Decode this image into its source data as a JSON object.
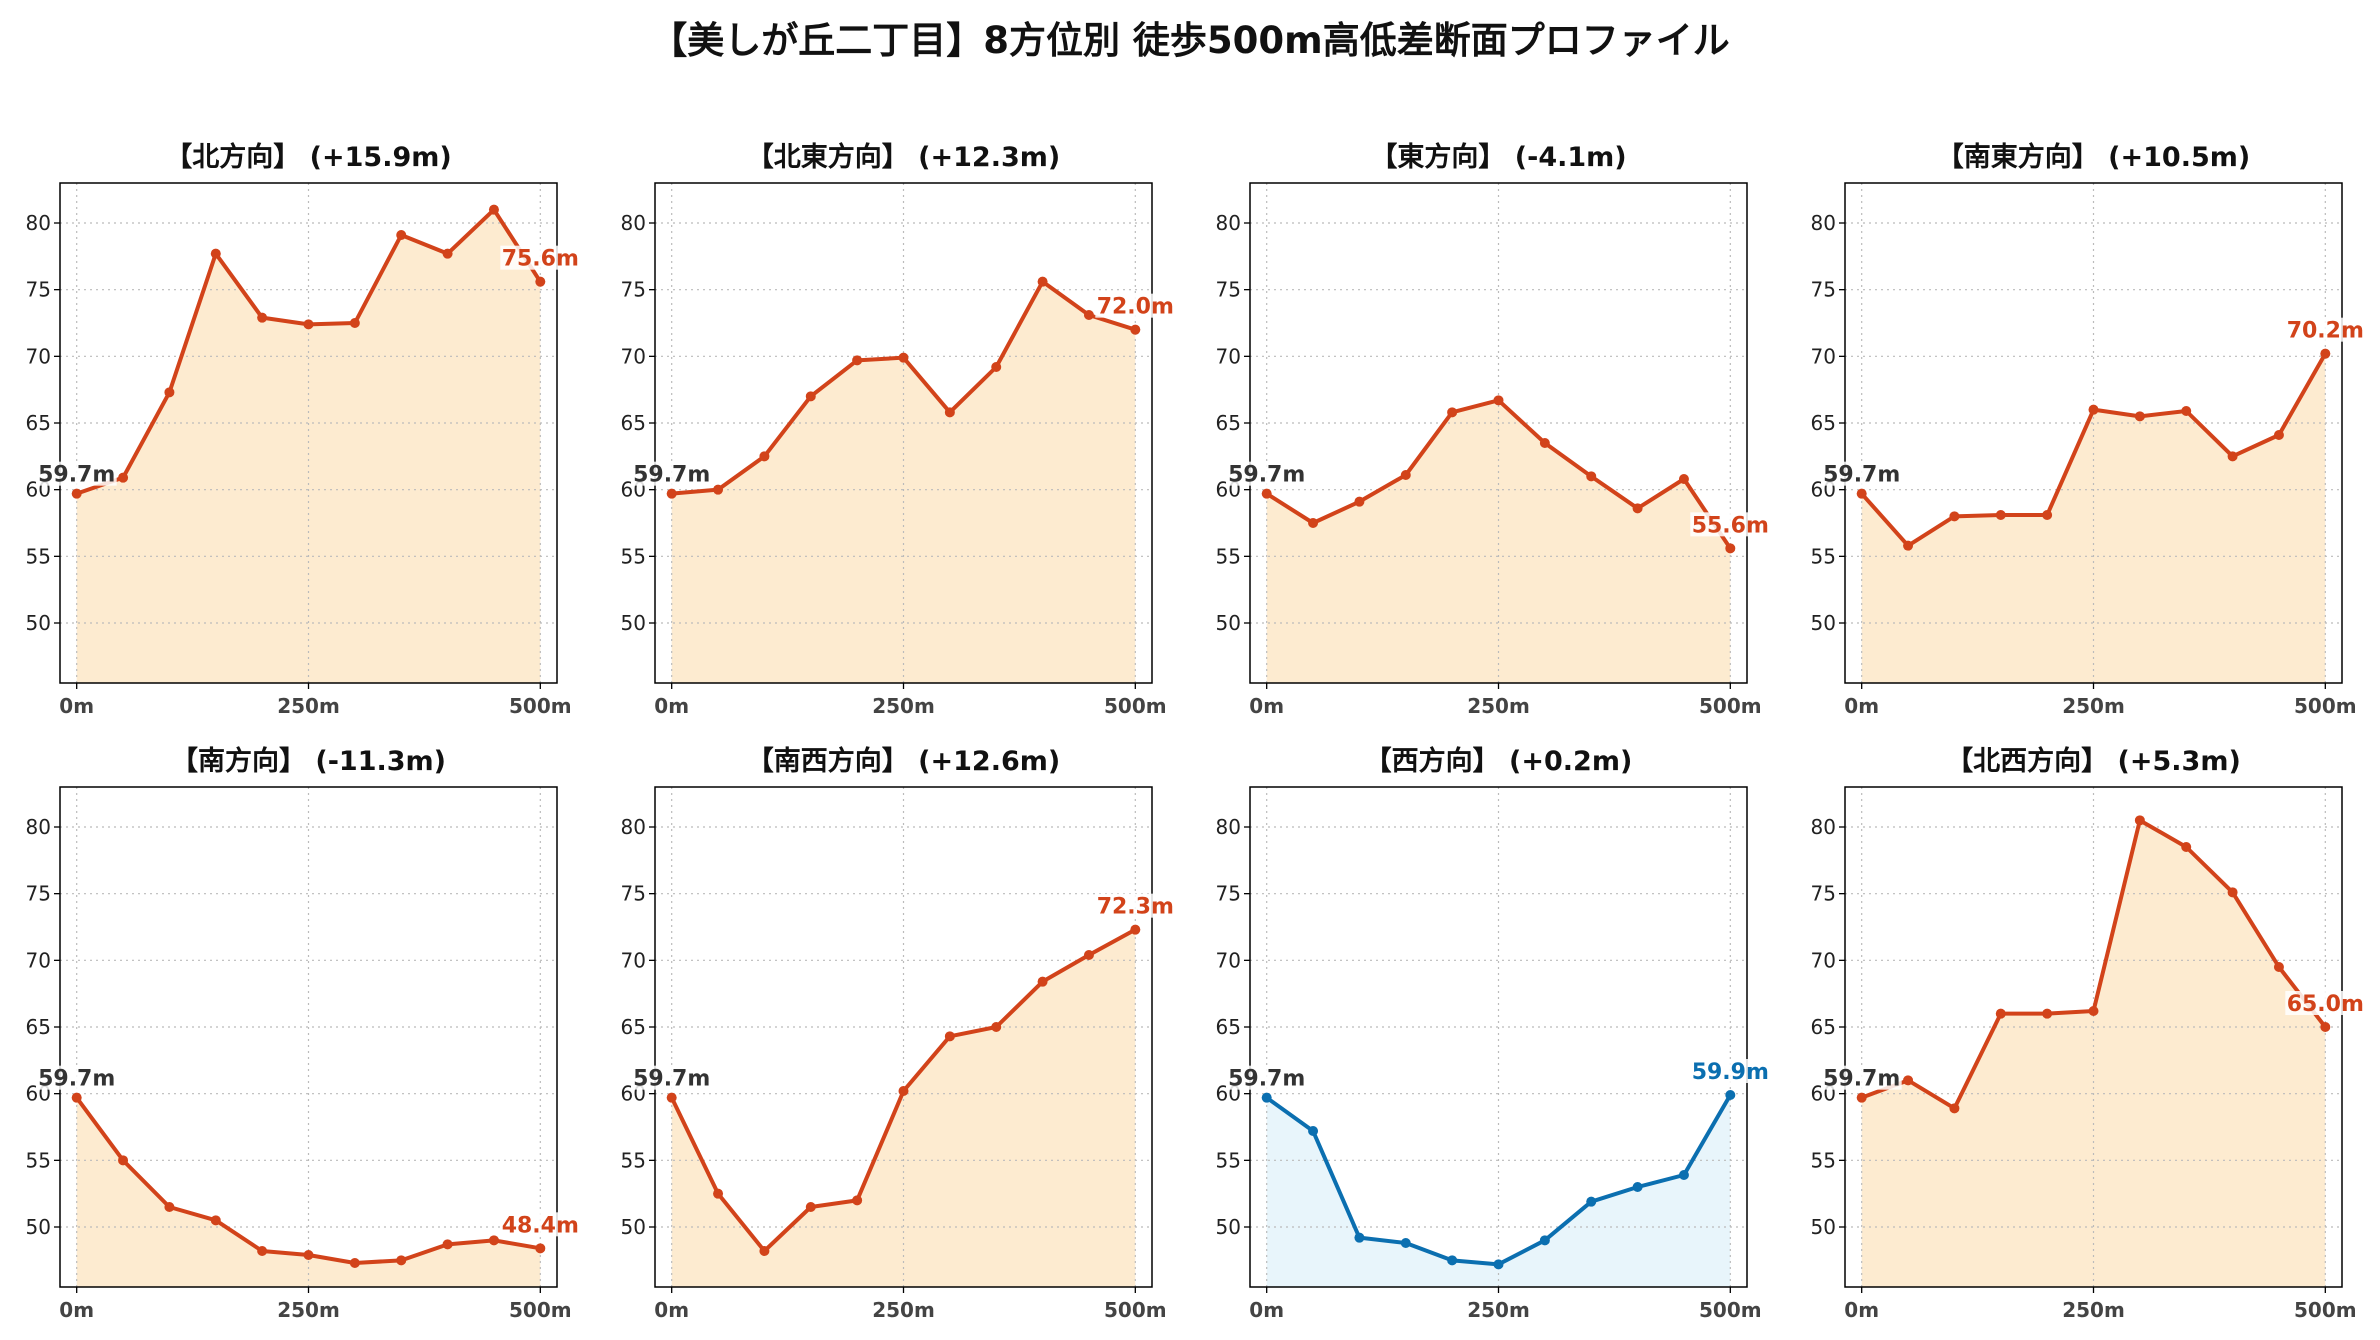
{
  "title": "【美しが丘二丁目】8方位別 徒歩500m高低差断面プロファイル",
  "colors": {
    "up_line": "#d2431a",
    "up_fill": "#fdebd0",
    "down_line": "#0b6fb0",
    "down_fill": "#e8f5fb",
    "start_label": "#333333",
    "grid": "#bbbbbb"
  },
  "chart_data": [
    {
      "type": "line",
      "title": "【北方向】 (+15.9m)",
      "x": [
        0,
        50,
        100,
        150,
        200,
        250,
        300,
        350,
        400,
        450,
        500
      ],
      "values": [
        59.7,
        60.9,
        67.3,
        77.7,
        72.9,
        72.4,
        72.5,
        79.1,
        77.7,
        81.0,
        75.6
      ],
      "start_label": "59.7m",
      "end_label": "75.6m",
      "scheme": "up",
      "xticks": [
        "0m",
        "250m",
        "500m"
      ],
      "yticks": [
        50,
        55,
        60,
        65,
        70,
        75,
        80
      ],
      "ylim": [
        45.5,
        83
      ],
      "xlim": [
        -18,
        518
      ],
      "grid": true
    },
    {
      "type": "line",
      "title": "【北東方向】 (+12.3m)",
      "x": [
        0,
        50,
        100,
        150,
        200,
        250,
        300,
        350,
        400,
        450,
        500
      ],
      "values": [
        59.7,
        60.0,
        62.5,
        67.0,
        69.7,
        69.9,
        65.8,
        69.2,
        75.6,
        73.1,
        72.0
      ],
      "start_label": "59.7m",
      "end_label": "72.0m",
      "scheme": "up",
      "xticks": [
        "0m",
        "250m",
        "500m"
      ],
      "yticks": [
        50,
        55,
        60,
        65,
        70,
        75,
        80
      ],
      "ylim": [
        45.5,
        83
      ],
      "xlim": [
        -18,
        518
      ],
      "grid": true
    },
    {
      "type": "line",
      "title": "【東方向】 (-4.1m)",
      "x": [
        0,
        50,
        100,
        150,
        200,
        250,
        300,
        350,
        400,
        450,
        500
      ],
      "values": [
        59.7,
        57.5,
        59.1,
        61.1,
        65.8,
        66.7,
        63.5,
        61.0,
        58.6,
        60.8,
        55.6
      ],
      "start_label": "59.7m",
      "end_label": "55.6m",
      "scheme": "up",
      "xticks": [
        "0m",
        "250m",
        "500m"
      ],
      "yticks": [
        50,
        55,
        60,
        65,
        70,
        75,
        80
      ],
      "ylim": [
        45.5,
        83
      ],
      "xlim": [
        -18,
        518
      ],
      "grid": true
    },
    {
      "type": "line",
      "title": "【南東方向】 (+10.5m)",
      "x": [
        0,
        50,
        100,
        150,
        200,
        250,
        300,
        350,
        400,
        450,
        500
      ],
      "values": [
        59.7,
        55.8,
        58.0,
        58.1,
        58.1,
        66.0,
        65.5,
        65.9,
        62.5,
        64.1,
        70.2
      ],
      "start_label": "59.7m",
      "end_label": "70.2m",
      "scheme": "up",
      "xticks": [
        "0m",
        "250m",
        "500m"
      ],
      "yticks": [
        50,
        55,
        60,
        65,
        70,
        75,
        80
      ],
      "ylim": [
        45.5,
        83
      ],
      "xlim": [
        -18,
        518
      ],
      "grid": true
    },
    {
      "type": "line",
      "title": "【南方向】 (-11.3m)",
      "x": [
        0,
        50,
        100,
        150,
        200,
        250,
        300,
        350,
        400,
        450,
        500
      ],
      "values": [
        59.7,
        55.0,
        51.5,
        50.5,
        48.2,
        47.9,
        47.3,
        47.5,
        48.7,
        49.0,
        48.4
      ],
      "start_label": "59.7m",
      "end_label": "48.4m",
      "scheme": "up",
      "xticks": [
        "0m",
        "250m",
        "500m"
      ],
      "yticks": [
        50,
        55,
        60,
        65,
        70,
        75,
        80
      ],
      "ylim": [
        45.5,
        83
      ],
      "xlim": [
        -18,
        518
      ],
      "grid": true
    },
    {
      "type": "line",
      "title": "【南西方向】 (+12.6m)",
      "x": [
        0,
        50,
        100,
        150,
        200,
        250,
        300,
        350,
        400,
        450,
        500
      ],
      "values": [
        59.7,
        52.5,
        48.2,
        51.5,
        52.0,
        60.2,
        64.3,
        65.0,
        68.4,
        70.4,
        72.3
      ],
      "start_label": "59.7m",
      "end_label": "72.3m",
      "scheme": "up",
      "xticks": [
        "0m",
        "250m",
        "500m"
      ],
      "yticks": [
        50,
        55,
        60,
        65,
        70,
        75,
        80
      ],
      "ylim": [
        45.5,
        83
      ],
      "xlim": [
        -18,
        518
      ],
      "grid": true
    },
    {
      "type": "line",
      "title": "【西方向】 (+0.2m)",
      "x": [
        0,
        50,
        100,
        150,
        200,
        250,
        300,
        350,
        400,
        450,
        500
      ],
      "values": [
        59.7,
        57.2,
        49.2,
        48.8,
        47.5,
        47.2,
        49.0,
        51.9,
        53.0,
        53.9,
        59.9
      ],
      "start_label": "59.7m",
      "end_label": "59.9m",
      "scheme": "down",
      "xticks": [
        "0m",
        "250m",
        "500m"
      ],
      "yticks": [
        50,
        55,
        60,
        65,
        70,
        75,
        80
      ],
      "ylim": [
        45.5,
        83
      ],
      "xlim": [
        -18,
        518
      ],
      "grid": true
    },
    {
      "type": "line",
      "title": "【北西方向】 (+5.3m)",
      "x": [
        0,
        50,
        100,
        150,
        200,
        250,
        300,
        350,
        400,
        450,
        500
      ],
      "values": [
        59.7,
        61.0,
        58.9,
        66.0,
        66.0,
        66.2,
        80.5,
        78.5,
        75.1,
        69.5,
        65.0
      ],
      "start_label": "59.7m",
      "end_label": "65.0m",
      "scheme": "up",
      "xticks": [
        "0m",
        "250m",
        "500m"
      ],
      "yticks": [
        50,
        55,
        60,
        65,
        70,
        75,
        80
      ],
      "ylim": [
        45.5,
        83
      ],
      "xlim": [
        -18,
        518
      ],
      "grid": true
    }
  ]
}
